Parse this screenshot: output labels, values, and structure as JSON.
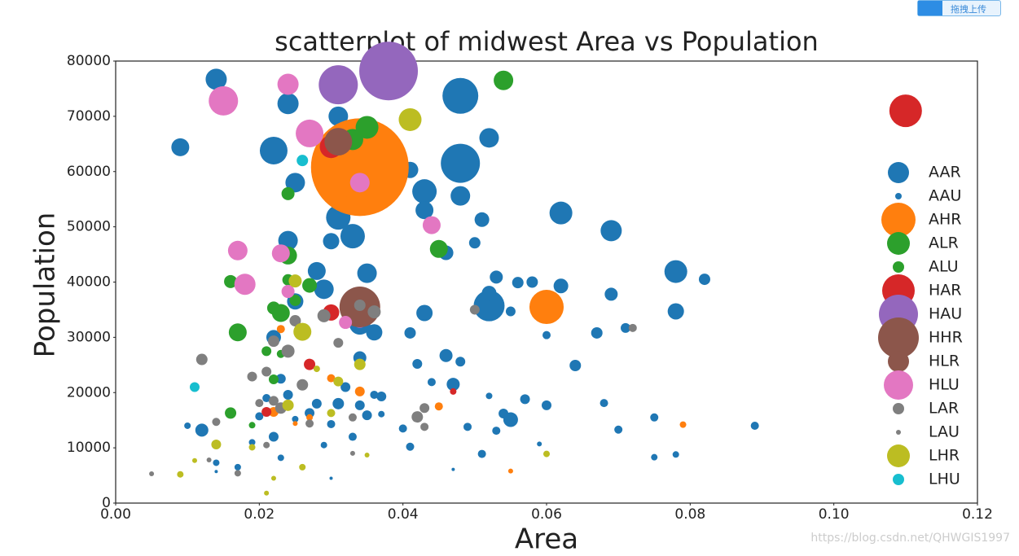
{
  "chart_data": {
    "type": "scatter",
    "title": "scatterplot of midwest Area vs Population",
    "x_label": "Area",
    "y_label": "Population",
    "xlim": [
      0,
      0.12
    ],
    "xticks": [
      {
        "value": 0,
        "label": "0.00"
      },
      {
        "value": 0.02,
        "label": "0.02"
      },
      {
        "value": 0.04,
        "label": "0.04"
      },
      {
        "value": 0.06,
        "label": "0.06"
      },
      {
        "value": 0.08,
        "label": "0.08"
      },
      {
        "value": 0.1,
        "label": "0.10"
      },
      {
        "value": 0.12,
        "label": "0.12"
      }
    ],
    "ylim": [
      0,
      80000
    ],
    "yticks": [
      0,
      10000,
      20000,
      30000,
      40000,
      50000,
      60000,
      70000,
      80000
    ],
    "grid": false,
    "legend": "right",
    "series": [
      {
        "name": "AAR",
        "color": "#1f77b4",
        "x": [
          0.014,
          0.022,
          0.048,
          0.048,
          0.062,
          0.069,
          0.078,
          0.031,
          0.024,
          0.009,
          0.052,
          0.033,
          0.025,
          0.052,
          0.043,
          0.031,
          0.035,
          0.024,
          0.034
        ],
        "values": [
          76700,
          63800,
          73700,
          61500,
          52500,
          49300,
          41900,
          51700,
          72300,
          64400,
          66100,
          48300,
          58000,
          35700,
          56400,
          70000,
          41600,
          47500,
          32400
        ],
        "sizes": [
          676,
          1156,
          1936,
          2304,
          784,
          676,
          784,
          900,
          676,
          484,
          576,
          900,
          576,
          1444,
          900,
          576,
          576,
          576,
          676
        ]
      },
      {
        "name": "AAU",
        "color": "#1f77b4",
        "x": [
          0.01,
          0.012,
          0.014,
          0.017,
          0.019,
          0.021,
          0.022,
          0.023,
          0.025,
          0.027,
          0.028,
          0.029,
          0.03,
          0.031,
          0.032,
          0.033,
          0.034,
          0.035,
          0.036,
          0.037,
          0.04,
          0.041,
          0.041,
          0.042,
          0.043,
          0.044,
          0.046,
          0.047,
          0.048,
          0.049,
          0.051,
          0.052,
          0.053,
          0.054,
          0.055,
          0.057,
          0.058,
          0.06,
          0.06,
          0.062,
          0.064,
          0.067,
          0.068,
          0.069,
          0.07,
          0.071,
          0.075,
          0.075,
          0.078,
          0.078,
          0.082,
          0.089,
          0.05,
          0.051,
          0.046,
          0.028,
          0.029,
          0.03,
          0.025,
          0.022,
          0.034,
          0.036,
          0.037,
          0.024,
          0.02,
          0.023,
          0.047,
          0.03,
          0.014,
          0.041,
          0.043,
          0.036,
          0.048,
          0.055,
          0.056,
          0.053,
          0.052,
          0.059
        ],
        "values": [
          14000,
          13200,
          7300,
          6500,
          11000,
          19000,
          12000,
          8200,
          15200,
          16300,
          18000,
          10500,
          14300,
          18000,
          21000,
          12000,
          17700,
          15900,
          19600,
          16100,
          13500,
          10200,
          30800,
          25200,
          34400,
          21900,
          26700,
          21500,
          25600,
          13800,
          8900,
          19400,
          13100,
          16200,
          15100,
          18800,
          40000,
          17700,
          30400,
          39300,
          24900,
          30800,
          18100,
          37800,
          13300,
          31700,
          15500,
          8300,
          34700,
          8800,
          40500,
          14000,
          47100,
          51300,
          45300,
          42000,
          38700,
          47400,
          36500,
          30000,
          26300,
          30900,
          19300,
          19600,
          15700,
          22500,
          6100,
          4500,
          5700,
          60300,
          53000,
          54000,
          55600,
          34700,
          39900,
          40900,
          38000,
          10700
        ],
        "sizes": [
          64,
          256,
          64,
          64,
          64,
          100,
          144,
          64,
          64,
          144,
          144,
          64,
          100,
          196,
          144,
          100,
          144,
          144,
          100,
          64,
          100,
          100,
          196,
          144,
          400,
          100,
          256,
          256,
          144,
          100,
          100,
          64,
          100,
          144,
          324,
          144,
          196,
          144,
          100,
          324,
          196,
          196,
          100,
          256,
          100,
          144,
          100,
          64,
          400,
          64,
          196,
          100,
          196,
          324,
          324,
          484,
          576,
          400,
          400,
          324,
          256,
          400,
          144,
          144,
          100,
          144,
          16,
          16,
          16,
          400,
          484,
          256,
          576,
          144,
          196,
          256,
          324,
          36
        ]
      },
      {
        "name": "AHR",
        "color": "#ff7f0e",
        "x": [
          0.06,
          0.034,
          0.034,
          0.045,
          0.055,
          0.079,
          0.03,
          0.034,
          0.027,
          0.025,
          0.022,
          0.023
        ],
        "values": [
          35500,
          60800,
          55000,
          17500,
          5800,
          14200,
          22600,
          20200,
          15500,
          14400,
          16500,
          31500
        ],
        "sizes": [
          1764,
          14400,
          1156,
          100,
          36,
          64,
          100,
          144,
          64,
          36,
          144,
          100
        ]
      },
      {
        "name": "ALR",
        "color": "#2ca02c",
        "x": [
          0.035,
          0.054,
          0.033,
          0.045,
          0.017,
          0.023,
          0.024,
          0.024,
          0.016,
          0.022,
          0.027
        ],
        "values": [
          68000,
          76500,
          65800,
          46000,
          30900,
          34400,
          44800,
          56000,
          40100,
          35300,
          39400
        ],
        "sizes": [
          784,
          576,
          676,
          484,
          484,
          484,
          484,
          256,
          256,
          256,
          324
        ]
      },
      {
        "name": "ALU",
        "color": "#2ca02c",
        "x": [
          0.016,
          0.019,
          0.021,
          0.022,
          0.024,
          0.025,
          0.026,
          0.023
        ],
        "values": [
          16300,
          14100,
          27500,
          22400,
          40400,
          36700,
          31700,
          27000
        ],
        "sizes": [
          196,
          64,
          144,
          144,
          196,
          196,
          144,
          100
        ]
      },
      {
        "name": "HAR",
        "color": "#d62728",
        "x": [
          0.11,
          0.03,
          0.03,
          0.027,
          0.047,
          0.021
        ],
        "values": [
          71000,
          64500,
          34500,
          25100,
          20200,
          16500
        ],
        "sizes": [
          1600,
          784,
          400,
          196,
          64,
          144
        ]
      },
      {
        "name": "HAU",
        "color": "#9467bd",
        "x": [
          0.031,
          0.038,
          0.034
        ],
        "values": [
          75700,
          78200,
          32700
        ],
        "sizes": [
          2304,
          5184,
          196
        ]
      },
      {
        "name": "HHR",
        "color": "#8c564b",
        "x": [
          0.034,
          0.031
        ],
        "values": [
          35500,
          65400
        ],
        "sizes": [
          2500,
          1156
        ]
      },
      {
        "name": "HLR",
        "color": "#8c564b",
        "x": [
          0.033
        ],
        "values": [
          34800
        ],
        "sizes": [
          676
        ]
      },
      {
        "name": "HLU",
        "color": "#e377c2",
        "x": [
          0.015,
          0.027,
          0.024,
          0.017,
          0.018,
          0.023,
          0.034,
          0.044,
          0.032,
          0.024
        ],
        "values": [
          72800,
          66900,
          75800,
          45700,
          39600,
          45200,
          58000,
          50300,
          32700,
          38300
        ],
        "sizes": [
          1296,
          1156,
          676,
          576,
          676,
          484,
          576,
          484,
          256,
          256
        ]
      },
      {
        "name": "LAR",
        "color": "#7f7f7f",
        "x": [
          0.012,
          0.021,
          0.022,
          0.024,
          0.025,
          0.026,
          0.029,
          0.031,
          0.036,
          0.042,
          0.043,
          0.043,
          0.05,
          0.072,
          0.019,
          0.014,
          0.022
        ],
        "values": [
          26000,
          23800,
          29300,
          27500,
          33000,
          21400,
          33900,
          29000,
          34600,
          15600,
          17200,
          13800,
          35000,
          31700,
          22900,
          14700,
          18500
        ],
        "sizes": [
          196,
          144,
          196,
          256,
          196,
          196,
          256,
          144,
          256,
          196,
          144,
          100,
          144,
          100,
          144,
          100,
          144
        ]
      },
      {
        "name": "LAU",
        "color": "#7f7f7f",
        "x": [
          0.005,
          0.013,
          0.017,
          0.021,
          0.023,
          0.027,
          0.033,
          0.033,
          0.034,
          0.02
        ],
        "values": [
          5300,
          7800,
          5400,
          10500,
          17200,
          14400,
          9000,
          15500,
          35800,
          18100
        ],
        "sizes": [
          36,
          36,
          64,
          64,
          196,
          100,
          36,
          100,
          196,
          100
        ]
      },
      {
        "name": "LHR",
        "color": "#bcbd22",
        "x": [
          0.041,
          0.026,
          0.025,
          0.024,
          0.014,
          0.009,
          0.011,
          0.019,
          0.021,
          0.022,
          0.026,
          0.031,
          0.034,
          0.035,
          0.06,
          0.03,
          0.028
        ],
        "values": [
          69400,
          31000,
          40200,
          17700,
          10600,
          5200,
          7700,
          10100,
          1800,
          4500,
          6500,
          22000,
          25100,
          8700,
          8900,
          16300,
          24300
        ],
        "sizes": [
          784,
          484,
          256,
          196,
          144,
          64,
          36,
          64,
          36,
          36,
          64,
          144,
          196,
          36,
          64,
          100,
          64
        ]
      },
      {
        "name": "LHU",
        "color": "#17becf",
        "x": [
          0.026,
          0.011
        ],
        "values": [
          62000,
          21000
        ],
        "sizes": [
          196,
          144
        ]
      }
    ]
  },
  "upload_button": "拖拽上传",
  "watermark": "https://blog.csdn.net/QHWGIS1997"
}
